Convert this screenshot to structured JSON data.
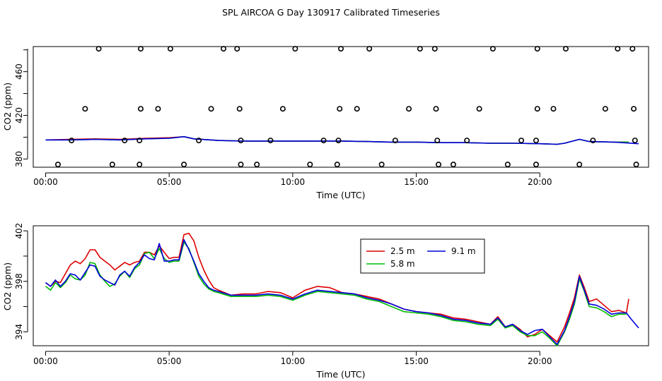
{
  "title": "SPL AIRCOA G  Day 130917  Calibrated Timeseries",
  "chart_data": [
    {
      "type": "scatter",
      "xlabel": "Time (UTC)",
      "ylabel": "CO2 (ppm)",
      "xlim": [
        -0.5,
        24.4
      ],
      "ylim": [
        372.5,
        483
      ],
      "xticks": [
        "00:00",
        "05:00",
        "10:00",
        "15:00",
        "20:00"
      ],
      "xtick_values": [
        0,
        5,
        10,
        15,
        20
      ],
      "yticks": [
        "380",
        "420",
        "460"
      ],
      "ytick_values": [
        380,
        420,
        460
      ],
      "colors": {
        "2.5 m": "#dd0000",
        "5.8 m": "#00bb00",
        "9.1 m": "#0000dd",
        "points": "#000000"
      },
      "calibration_points": [
        {
          "x": 2.15,
          "y": 481
        },
        {
          "x": 3.85,
          "y": 481
        },
        {
          "x": 5.05,
          "y": 481
        },
        {
          "x": 7.2,
          "y": 481
        },
        {
          "x": 7.75,
          "y": 481
        },
        {
          "x": 10.1,
          "y": 481
        },
        {
          "x": 11.95,
          "y": 481
        },
        {
          "x": 13.1,
          "y": 481
        },
        {
          "x": 15.15,
          "y": 481
        },
        {
          "x": 15.75,
          "y": 481
        },
        {
          "x": 18.1,
          "y": 481
        },
        {
          "x": 19.9,
          "y": 481
        },
        {
          "x": 21.05,
          "y": 481
        },
        {
          "x": 23.15,
          "y": 481
        },
        {
          "x": 23.75,
          "y": 481
        },
        {
          "x": 1.6,
          "y": 426
        },
        {
          "x": 3.85,
          "y": 426
        },
        {
          "x": 4.55,
          "y": 426
        },
        {
          "x": 6.7,
          "y": 426
        },
        {
          "x": 7.85,
          "y": 426
        },
        {
          "x": 9.6,
          "y": 426
        },
        {
          "x": 11.9,
          "y": 426
        },
        {
          "x": 12.6,
          "y": 426
        },
        {
          "x": 14.7,
          "y": 426
        },
        {
          "x": 15.8,
          "y": 426
        },
        {
          "x": 17.55,
          "y": 426
        },
        {
          "x": 19.9,
          "y": 426
        },
        {
          "x": 20.55,
          "y": 426
        },
        {
          "x": 22.65,
          "y": 426
        },
        {
          "x": 23.8,
          "y": 426
        },
        {
          "x": 1.05,
          "y": 397
        },
        {
          "x": 3.2,
          "y": 397
        },
        {
          "x": 3.8,
          "y": 397
        },
        {
          "x": 6.2,
          "y": 397
        },
        {
          "x": 7.9,
          "y": 397
        },
        {
          "x": 9.1,
          "y": 397
        },
        {
          "x": 11.25,
          "y": 397
        },
        {
          "x": 11.85,
          "y": 397
        },
        {
          "x": 14.15,
          "y": 397
        },
        {
          "x": 15.85,
          "y": 397
        },
        {
          "x": 17.05,
          "y": 397
        },
        {
          "x": 19.25,
          "y": 397
        },
        {
          "x": 19.85,
          "y": 397
        },
        {
          "x": 22.15,
          "y": 397
        },
        {
          "x": 23.85,
          "y": 397
        },
        {
          "x": 0.5,
          "y": 375
        },
        {
          "x": 2.7,
          "y": 375
        },
        {
          "x": 3.8,
          "y": 375
        },
        {
          "x": 5.6,
          "y": 375
        },
        {
          "x": 7.9,
          "y": 375
        },
        {
          "x": 8.55,
          "y": 375
        },
        {
          "x": 10.7,
          "y": 375
        },
        {
          "x": 11.8,
          "y": 375
        },
        {
          "x": 13.6,
          "y": 375
        },
        {
          "x": 15.9,
          "y": 375
        },
        {
          "x": 16.5,
          "y": 375
        },
        {
          "x": 18.7,
          "y": 375
        },
        {
          "x": 19.85,
          "y": 375
        },
        {
          "x": 21.6,
          "y": 375
        },
        {
          "x": 23.9,
          "y": 375
        }
      ],
      "series": [
        {
          "name": "2.5 m",
          "x": [
            0,
            1,
            2,
            3,
            4,
            5,
            5.6,
            6,
            7,
            8,
            9,
            10,
            11,
            12,
            13,
            14,
            15,
            16,
            17,
            18,
            19,
            20,
            20.7,
            21,
            21.6,
            22,
            23,
            23.6
          ],
          "values": [
            397.5,
            398,
            398.5,
            398,
            399,
            399.5,
            400.5,
            398.5,
            397,
            396.5,
            396.5,
            396.5,
            396.5,
            396.5,
            396,
            395.5,
            395.5,
            395,
            395,
            394.5,
            394.5,
            394,
            393.5,
            394.5,
            398,
            396,
            395.5,
            395.5
          ]
        },
        {
          "name": "5.8 m",
          "x": [
            0,
            1,
            2,
            3,
            4,
            5,
            5.6,
            6,
            7,
            8,
            9,
            10,
            11,
            12,
            13,
            14,
            15,
            16,
            17,
            18,
            19,
            20,
            20.7,
            21,
            21.6,
            22,
            23,
            23.6
          ],
          "values": [
            397.5,
            397.5,
            398,
            397.5,
            398.5,
            399,
            400.5,
            398.5,
            397,
            396.5,
            396.5,
            396.5,
            396.5,
            396.5,
            396,
            395.5,
            395.5,
            395,
            395,
            394.5,
            394.5,
            394,
            393.5,
            394.5,
            398,
            396,
            395.5,
            395.5
          ]
        },
        {
          "name": "9.1 m",
          "x": [
            0,
            1,
            2,
            3,
            4,
            5,
            5.6,
            6,
            7,
            8,
            9,
            10,
            11,
            12,
            13,
            14,
            15,
            16,
            17,
            18,
            19,
            20,
            20.7,
            21,
            21.6,
            22,
            23,
            24
          ],
          "values": [
            397.5,
            397.5,
            398,
            397.5,
            398.5,
            399,
            400.5,
            398.5,
            397,
            396.5,
            396.5,
            396.5,
            396.5,
            396.5,
            396,
            395.5,
            395.5,
            395,
            395,
            394.5,
            394.5,
            394,
            393.5,
            394.5,
            398,
            396,
            395.5,
            394
          ]
        }
      ]
    },
    {
      "type": "line",
      "xlabel": "Time (UTC)",
      "ylabel": "CO2 (ppm)",
      "xlim": [
        -0.5,
        24.4
      ],
      "ylim": [
        392.9,
        402.4
      ],
      "xticks": [
        "00:00",
        "05:00",
        "10:00",
        "15:00",
        "20:00"
      ],
      "xtick_values": [
        0,
        5,
        10,
        15,
        20
      ],
      "yticks": [
        "394",
        "398",
        "402"
      ],
      "ytick_values": [
        394,
        398,
        402
      ],
      "legend": "top-center",
      "legend_entries": [
        "2.5 m",
        "9.1 m",
        "5.8 m"
      ],
      "colors": {
        "2.5 m": "#dd0000",
        "5.8 m": "#00bb00",
        "9.1 m": "#0000dd"
      },
      "series": [
        {
          "name": "2.5 m",
          "x": [
            0,
            0.2,
            0.4,
            0.6,
            0.8,
            1,
            1.2,
            1.4,
            1.6,
            1.8,
            2,
            2.2,
            2.4,
            2.6,
            2.8,
            3,
            3.2,
            3.4,
            3.6,
            3.8,
            4,
            4.2,
            4.4,
            4.6,
            4.8,
            5,
            5.2,
            5.4,
            5.6,
            5.8,
            6,
            6.2,
            6.4,
            6.6,
            6.8,
            7,
            7.5,
            8,
            8.5,
            9,
            9.5,
            10,
            10.5,
            11,
            11.5,
            12,
            12.5,
            13,
            13.5,
            14,
            14.5,
            15,
            15.5,
            16,
            16.5,
            17,
            17.5,
            18,
            18.3,
            18.6,
            18.9,
            19.2,
            19.5,
            19.8,
            20.1,
            20.4,
            20.7,
            21,
            21.2,
            21.4,
            21.6,
            21.8,
            22,
            22.3,
            22.6,
            22.9,
            23.2,
            23.5,
            23.6
          ],
          "values": [
            397.9,
            397.6,
            398,
            397.9,
            398.6,
            399.3,
            399.6,
            399.4,
            399.8,
            400.5,
            400.5,
            399.9,
            399.6,
            399.3,
            398.9,
            399.2,
            399.5,
            399.3,
            399.5,
            399.6,
            400.3,
            400.3,
            400.1,
            400.8,
            400.3,
            399.8,
            399.9,
            399.9,
            401.7,
            401.8,
            401.2,
            399.9,
            398.9,
            398.1,
            397.5,
            397.3,
            396.9,
            397,
            397,
            397.2,
            397.1,
            396.7,
            397.3,
            397.6,
            397.5,
            397.1,
            397,
            396.8,
            396.6,
            396.2,
            395.8,
            395.6,
            395.5,
            395.4,
            395.1,
            395,
            394.8,
            394.6,
            395.2,
            394.4,
            394.6,
            394.2,
            393.6,
            393.8,
            394.2,
            393.7,
            393.2,
            394.4,
            395.5,
            396.7,
            398.5,
            397.5,
            396.4,
            396.6,
            396.1,
            395.6,
            395.7,
            395.5,
            396.6
          ]
        },
        {
          "name": "5.8 m",
          "x": [
            0,
            0.2,
            0.4,
            0.6,
            0.8,
            1,
            1.2,
            1.4,
            1.6,
            1.8,
            2,
            2.2,
            2.4,
            2.6,
            2.8,
            3,
            3.2,
            3.4,
            3.6,
            3.8,
            4,
            4.2,
            4.4,
            4.6,
            4.8,
            5,
            5.2,
            5.4,
            5.6,
            5.8,
            6,
            6.2,
            6.4,
            6.6,
            6.8,
            7,
            7.5,
            8,
            8.5,
            9,
            9.5,
            10,
            10.5,
            11,
            11.5,
            12,
            12.5,
            13,
            13.5,
            14,
            14.5,
            15,
            15.5,
            16,
            16.5,
            17,
            17.5,
            18,
            18.3,
            18.6,
            18.9,
            19.2,
            19.5,
            19.8,
            20.1,
            20.4,
            20.7,
            21,
            21.2,
            21.4,
            21.6,
            21.8,
            22,
            22.3,
            22.6,
            22.9,
            23.2,
            23.5
          ],
          "values": [
            397.6,
            397.3,
            397.9,
            397.5,
            397.9,
            398.5,
            398.2,
            398.1,
            398.5,
            399.5,
            399.4,
            398.5,
            398,
            397.6,
            397.8,
            398.4,
            398.8,
            398.3,
            399,
            399.3,
            400.2,
            400.3,
            399.8,
            400.6,
            399.8,
            399.5,
            399.6,
            399.6,
            401.1,
            400.6,
            399.5,
            398.4,
            397.8,
            397.4,
            397.2,
            397.1,
            396.8,
            396.8,
            396.8,
            396.9,
            396.8,
            396.5,
            396.9,
            397.2,
            397.1,
            397,
            396.9,
            396.6,
            396.4,
            396,
            395.6,
            395.5,
            395.4,
            395.2,
            394.9,
            394.8,
            394.6,
            394.5,
            395,
            394.3,
            394.5,
            394,
            393.7,
            393.7,
            394,
            393.5,
            392.9,
            394,
            395,
            396.2,
            398.2,
            397.2,
            396,
            395.9,
            395.6,
            395.2,
            395.4,
            395.4
          ]
        },
        {
          "name": "9.1 m",
          "x": [
            0,
            0.2,
            0.4,
            0.6,
            0.8,
            1,
            1.2,
            1.4,
            1.6,
            1.8,
            2,
            2.2,
            2.4,
            2.6,
            2.8,
            3,
            3.2,
            3.4,
            3.6,
            3.8,
            4,
            4.2,
            4.4,
            4.6,
            4.8,
            5,
            5.2,
            5.4,
            5.6,
            5.8,
            6,
            6.2,
            6.4,
            6.6,
            6.8,
            7,
            7.5,
            8,
            8.5,
            9,
            9.5,
            10,
            10.5,
            11,
            11.5,
            12,
            12.5,
            13,
            13.5,
            14,
            14.5,
            15,
            15.5,
            16,
            16.5,
            17,
            17.5,
            18,
            18.3,
            18.6,
            18.9,
            19.2,
            19.5,
            19.8,
            20.1,
            20.4,
            20.7,
            21,
            21.2,
            21.4,
            21.6,
            21.8,
            22,
            22.3,
            22.6,
            22.9,
            23.2,
            23.5,
            23.7,
            24
          ],
          "values": [
            397.9,
            397.6,
            398.1,
            397.6,
            398,
            398.6,
            398.5,
            398.1,
            398.7,
            399.3,
            399.2,
            398.4,
            398.1,
            397.9,
            397.7,
            398.5,
            398.8,
            398.4,
            399.1,
            399.5,
            400.1,
            399.8,
            399.7,
            401,
            399.6,
            399.6,
            399.7,
            399.7,
            401.3,
            400.5,
            399.6,
            398.6,
            398,
            397.5,
            397.3,
            397.2,
            396.9,
            396.9,
            396.9,
            397,
            396.9,
            396.6,
            397,
            397.3,
            397.2,
            397.1,
            397,
            396.7,
            396.5,
            396.2,
            395.8,
            395.6,
            395.5,
            395.3,
            395,
            394.9,
            394.7,
            394.6,
            395.1,
            394.4,
            394.6,
            394.1,
            393.8,
            394.1,
            394.2,
            393.6,
            393,
            394.1,
            395.2,
            396.4,
            398.4,
            397.3,
            396.2,
            396.1,
            395.8,
            395.4,
            395.5,
            395.5,
            395,
            394.3
          ]
        }
      ]
    }
  ]
}
